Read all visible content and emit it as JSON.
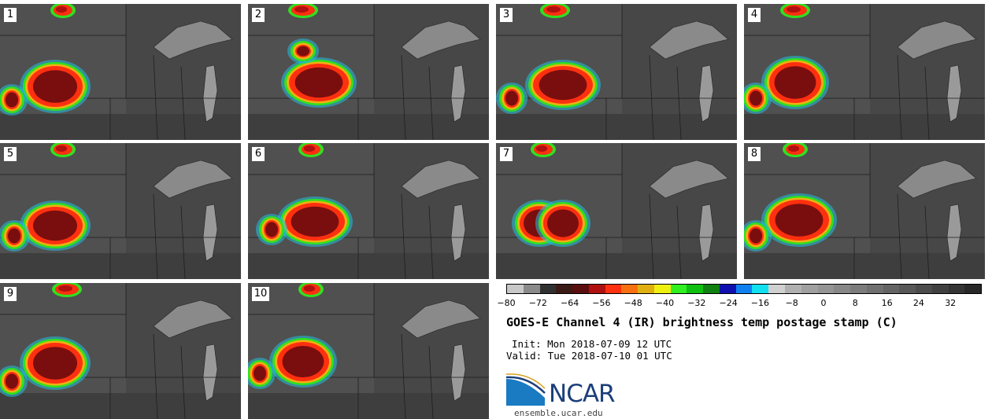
{
  "panels": [
    {
      "label": "1"
    },
    {
      "label": "2"
    },
    {
      "label": "3"
    },
    {
      "label": "4"
    },
    {
      "label": "5"
    },
    {
      "label": "6"
    },
    {
      "label": "7"
    },
    {
      "label": "8"
    },
    {
      "label": "9"
    },
    {
      "label": "10"
    }
  ],
  "colorbar": {
    "colors": [
      "#c8c8c8",
      "#8a8a8a",
      "#303030",
      "#3a1a14",
      "#5a0e0e",
      "#b01010",
      "#ff3010",
      "#f87010",
      "#e0b010",
      "#f0f010",
      "#30f020",
      "#10c010",
      "#108010",
      "#1010b0",
      "#1080f0",
      "#10e0f0",
      "#d0d0d0",
      "#b0b0b0",
      "#a0a0a0",
      "#949494",
      "#888888",
      "#7c7c7c",
      "#707070",
      "#646464",
      "#585858",
      "#4c4c4c",
      "#404040",
      "#343434",
      "#282828"
    ],
    "ticks": [
      "−80",
      "−72",
      "−64",
      "−56",
      "−48",
      "−40",
      "−32",
      "−24",
      "−16",
      "−8",
      "0",
      "8",
      "16",
      "24",
      "32"
    ]
  },
  "title": "GOES-E Channel 4 (IR) brightness temp postage stamp (C)",
  "init": "Init: Mon 2018-07-09 12 UTC",
  "valid": "Valid: Tue 2018-07-10 01 UTC",
  "logo": {
    "text": "NCAR",
    "url": "ensemble.ucar.edu"
  }
}
